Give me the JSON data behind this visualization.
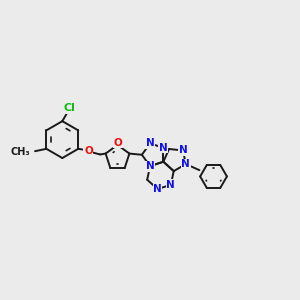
{
  "bg_color": "#ebebeb",
  "bond_color": "#1a1a1a",
  "bond_width": 1.4,
  "N_color": "#1010ee",
  "O_color": "#ee1010",
  "Cl_color": "#11bb11",
  "font_size": 7.5,
  "fig_size": [
    3.0,
    3.0
  ],
  "dpi": 100,
  "xlim": [
    0.0,
    10.0
  ],
  "ylim": [
    2.5,
    8.5
  ]
}
